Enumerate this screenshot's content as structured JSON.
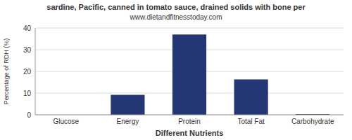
{
  "chart_data": {
    "type": "bar",
    "title": "sardine, Pacific, canned in tomato sauce, drained solids with bone per",
    "subtitle": "www.dietandfitnesstoday.com",
    "xlabel": "Different Nutrients",
    "ylabel": "Percentage of RDH (%)",
    "categories": [
      "Glucose",
      "Energy",
      "Protein",
      "Total Fat",
      "Carbohydrate"
    ],
    "values": [
      0,
      9.2,
      37.0,
      16.3,
      0.3
    ],
    "color": "#253674",
    "ylim": [
      0,
      40
    ],
    "yticks": [
      0,
      10,
      20,
      30,
      40
    ],
    "grid": true
  }
}
